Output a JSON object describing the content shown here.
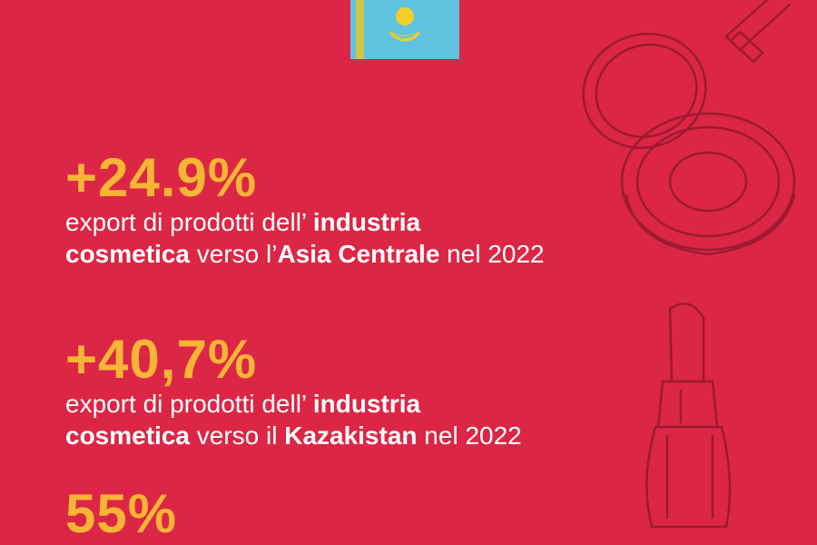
{
  "stats": [
    {
      "value": "+24.9%",
      "lines": [
        [
          {
            "text": "export di prodotti dell’ ",
            "bold": false
          },
          {
            "text": "industria",
            "bold": true
          }
        ],
        [
          {
            "text": "cosmetica",
            "bold": true
          },
          {
            "text": " verso l’",
            "bold": false
          },
          {
            "text": "Asia Centrale",
            "bold": true
          },
          {
            "text": " nel 2022",
            "bold": false
          }
        ]
      ]
    },
    {
      "value": "+40,7%",
      "lines": [
        [
          {
            "text": "export di prodotti dell’ ",
            "bold": false
          },
          {
            "text": "industria",
            "bold": true
          }
        ],
        [
          {
            "text": "cosmetica",
            "bold": true
          },
          {
            "text": " verso il ",
            "bold": false
          },
          {
            "text": "Kazakistan",
            "bold": true
          },
          {
            "text": " nel 2022",
            "bold": false
          }
        ]
      ]
    },
    {
      "value": "55%",
      "lines": []
    }
  ]
}
